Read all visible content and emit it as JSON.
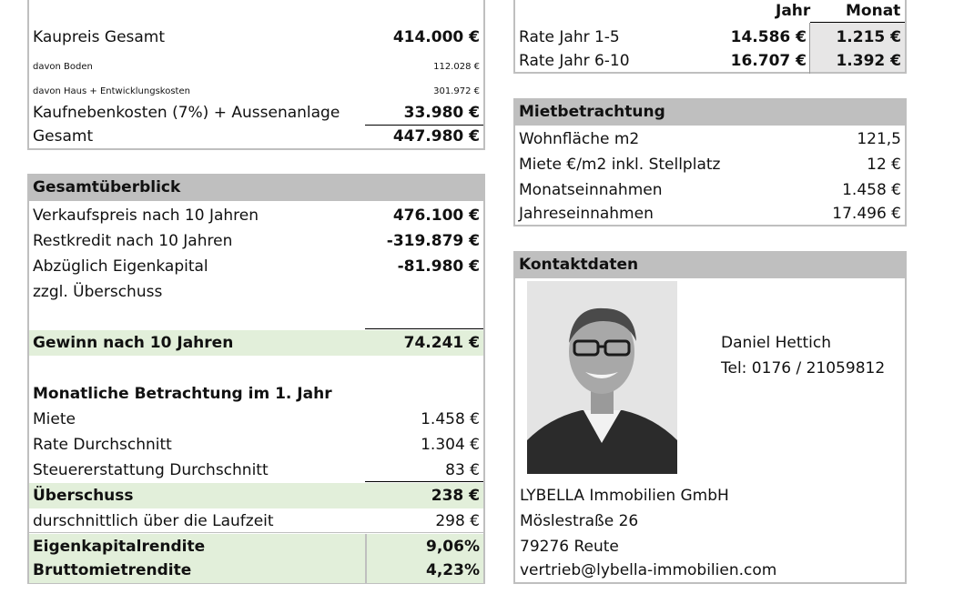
{
  "kauf": {
    "rows": [
      {
        "label": "Kaupreis Gesamt",
        "value": "414.000 €"
      },
      {
        "label": "davon Boden",
        "value": "112.028 €"
      },
      {
        "label": "davon Haus + Entwicklungskosten",
        "value": "301.972 €"
      },
      {
        "label": "Kaufnebenkosten (7%) + Aussenanlage",
        "value": "33.980 €"
      },
      {
        "label": "Gesamt",
        "value": "447.980 €"
      }
    ]
  },
  "rate": {
    "col_jahr": "Jahr",
    "col_monat": "Monat",
    "rows": [
      {
        "label": "Rate Jahr 1-5",
        "jahr": "14.586 €",
        "monat": "1.215 €"
      },
      {
        "label": "Rate Jahr 6-10",
        "jahr": "16.707 €",
        "monat": "1.392 €"
      }
    ]
  },
  "gesamt": {
    "title": "Gesamtüberblick",
    "rows": [
      {
        "label": "Verkaufspreis nach 10 Jahren",
        "value": "476.100 €"
      },
      {
        "label": "Restkredit nach 10 Jahren",
        "value": "-319.879 €"
      },
      {
        "label": "Abzüglich Eigenkapital",
        "value": "-81.980 €"
      },
      {
        "label": "zzgl. Überschuss",
        "value": ""
      }
    ],
    "gewinn_label": "Gewinn nach 10 Jahren",
    "gewinn_value": "74.241 €",
    "monat_title": "Monatliche Betrachtung im 1. Jahr",
    "monat_rows": [
      {
        "label": "Miete",
        "value": "1.458 €"
      },
      {
        "label": "Rate Durchschnitt",
        "value": "1.304 €"
      },
      {
        "label": "Steuererstattung Durchschnitt",
        "value": "83 €"
      }
    ],
    "ueberschuss_label": "Überschuss",
    "ueberschuss_value": "238 €",
    "laufzeit_label": "durschnittlich über die Laufzeit",
    "laufzeit_value": "298 €",
    "ek_label": "Eigenkapitalrendite",
    "ek_value": "9,06%",
    "brutto_label": "Bruttomietrendite",
    "brutto_value": "4,23%"
  },
  "miet": {
    "title": "Mietbetrachtung",
    "rows": [
      {
        "label": "Wohnfläche m2",
        "value": "121,5"
      },
      {
        "label": "Miete €/m2 inkl. Stellplatz",
        "value": "12 €"
      },
      {
        "label": "Monatseinnahmen",
        "value": "1.458 €"
      },
      {
        "label": "Jahreseinnahmen",
        "value": "17.496 €"
      }
    ]
  },
  "kontakt": {
    "title": "Kontaktdaten",
    "name": "Daniel Hettich",
    "tel": "Tel: 0176 / 21059812",
    "company": "LYBELLA Immobilien GmbH",
    "street": "Möslestraße 26",
    "city": "79276 Reute",
    "email": "vertrieb@lybella-immobilien.com",
    "photo_icon": "person-photo-icon"
  }
}
